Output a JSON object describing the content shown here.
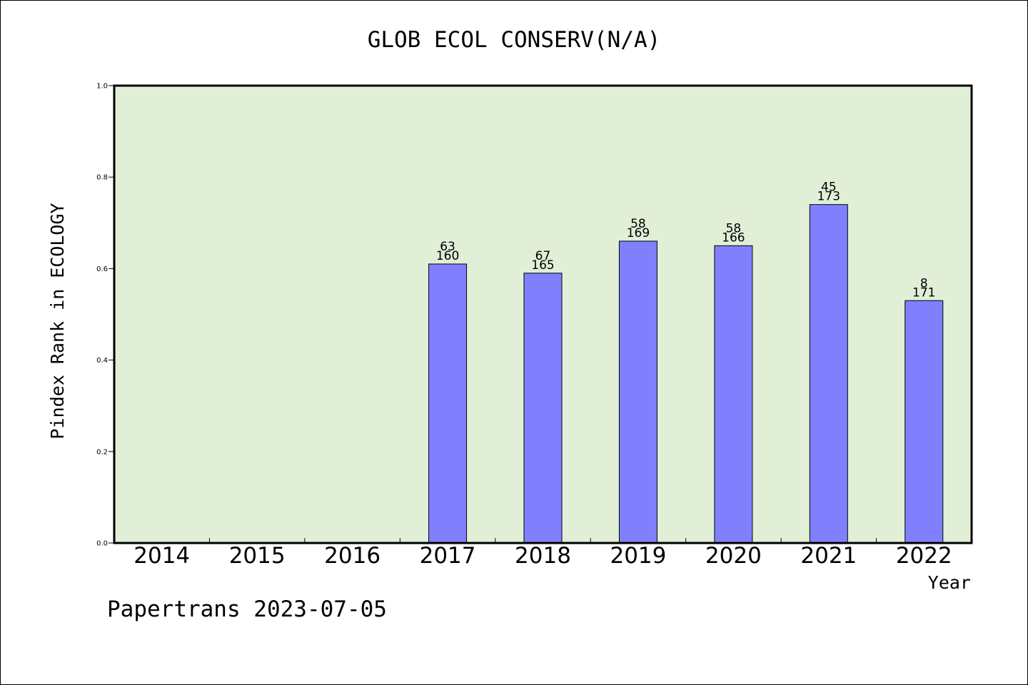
{
  "chart_data": {
    "type": "bar",
    "title": "GLOB ECOL CONSERV(N/A)",
    "xlabel": "Year",
    "ylabel": "Pindex Rank in ECOLOGY",
    "categories": [
      "2014",
      "2015",
      "2016",
      "2017",
      "2018",
      "2019",
      "2020",
      "2021",
      "2022"
    ],
    "values": [
      null,
      null,
      null,
      0.61,
      0.59,
      0.66,
      0.65,
      0.74,
      0.53
    ],
    "label_top": [
      null,
      null,
      null,
      "63",
      "67",
      "58",
      "58",
      "45",
      "8"
    ],
    "label_bottom": [
      null,
      null,
      null,
      "160",
      "165",
      "169",
      "166",
      "173",
      "171"
    ],
    "ylim": [
      0,
      1.0
    ],
    "yticks": [
      "0.0",
      "0.2",
      "0.4",
      "0.6",
      "0.8",
      "1.0"
    ],
    "grid": false,
    "plot_background": "#e1efd7",
    "bar_color": "#8080ff"
  },
  "footer": {
    "credit": "Papertrans 2023-07-05"
  }
}
